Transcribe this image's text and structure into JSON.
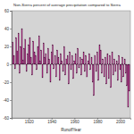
{
  "chart_data": {
    "type": "bar",
    "title": "Non-Sierra percent of average precipitation compared to Sierra",
    "x_label": "RunoffYear",
    "x": [
      1906,
      1907,
      1908,
      1909,
      1910,
      1911,
      1912,
      1913,
      1914,
      1915,
      1916,
      1917,
      1918,
      1919,
      1920,
      1921,
      1922,
      1923,
      1924,
      1925,
      1926,
      1927,
      1928,
      1929,
      1930,
      1931,
      1932,
      1933,
      1934,
      1935,
      1936,
      1937,
      1938,
      1939,
      1940,
      1941,
      1942,
      1943,
      1944,
      1945,
      1946,
      1947,
      1948,
      1949,
      1950,
      1951,
      1952,
      1953,
      1954,
      1955,
      1956,
      1957,
      1958,
      1959,
      1960,
      1961,
      1962,
      1963,
      1964,
      1965,
      1966,
      1967,
      1968,
      1969,
      1970,
      1971,
      1972,
      1973,
      1974,
      1975,
      1976,
      1977,
      1978,
      1979,
      1980,
      1981,
      1982,
      1983,
      1984,
      1985,
      1986,
      1987,
      1988,
      1989,
      1990,
      1991,
      1992,
      1993,
      1994,
      1995,
      1996,
      1997,
      1998,
      1999,
      2000,
      2001,
      2002,
      2003,
      2004,
      2005,
      2006,
      2007,
      2008
    ],
    "values": [
      25,
      10,
      -5,
      30,
      15,
      35,
      -10,
      20,
      40,
      5,
      18,
      28,
      -8,
      12,
      22,
      30,
      8,
      -12,
      26,
      14,
      10,
      -6,
      20,
      32,
      4,
      16,
      -15,
      24,
      8,
      12,
      -10,
      18,
      6,
      -20,
      14,
      22,
      -5,
      10,
      -14,
      16,
      8,
      -18,
      12,
      4,
      -8,
      20,
      -12,
      6,
      10,
      -22,
      14,
      -6,
      10,
      -16,
      4,
      12,
      -10,
      18,
      -4,
      8,
      -12,
      6,
      14,
      -8,
      10,
      -14,
      4,
      12,
      -6,
      8,
      -20,
      -35,
      10,
      -8,
      14,
      -18,
      22,
      16,
      -10,
      6,
      -14,
      8,
      -22,
      12,
      -16,
      10,
      -26,
      14,
      -12,
      6,
      -8,
      4,
      -18,
      10,
      -6,
      -20,
      8,
      -14,
      6,
      -10,
      -24,
      -48,
      -30
    ],
    "color": "#a8287e",
    "xlim": [
      1905,
      2009
    ],
    "xticks": [
      1920,
      1940,
      1960,
      1980,
      2000
    ],
    "ylim": [
      -60,
      60
    ],
    "yticks": [
      -60,
      -40,
      -20,
      0,
      20,
      40,
      60
    ],
    "grid": false
  }
}
